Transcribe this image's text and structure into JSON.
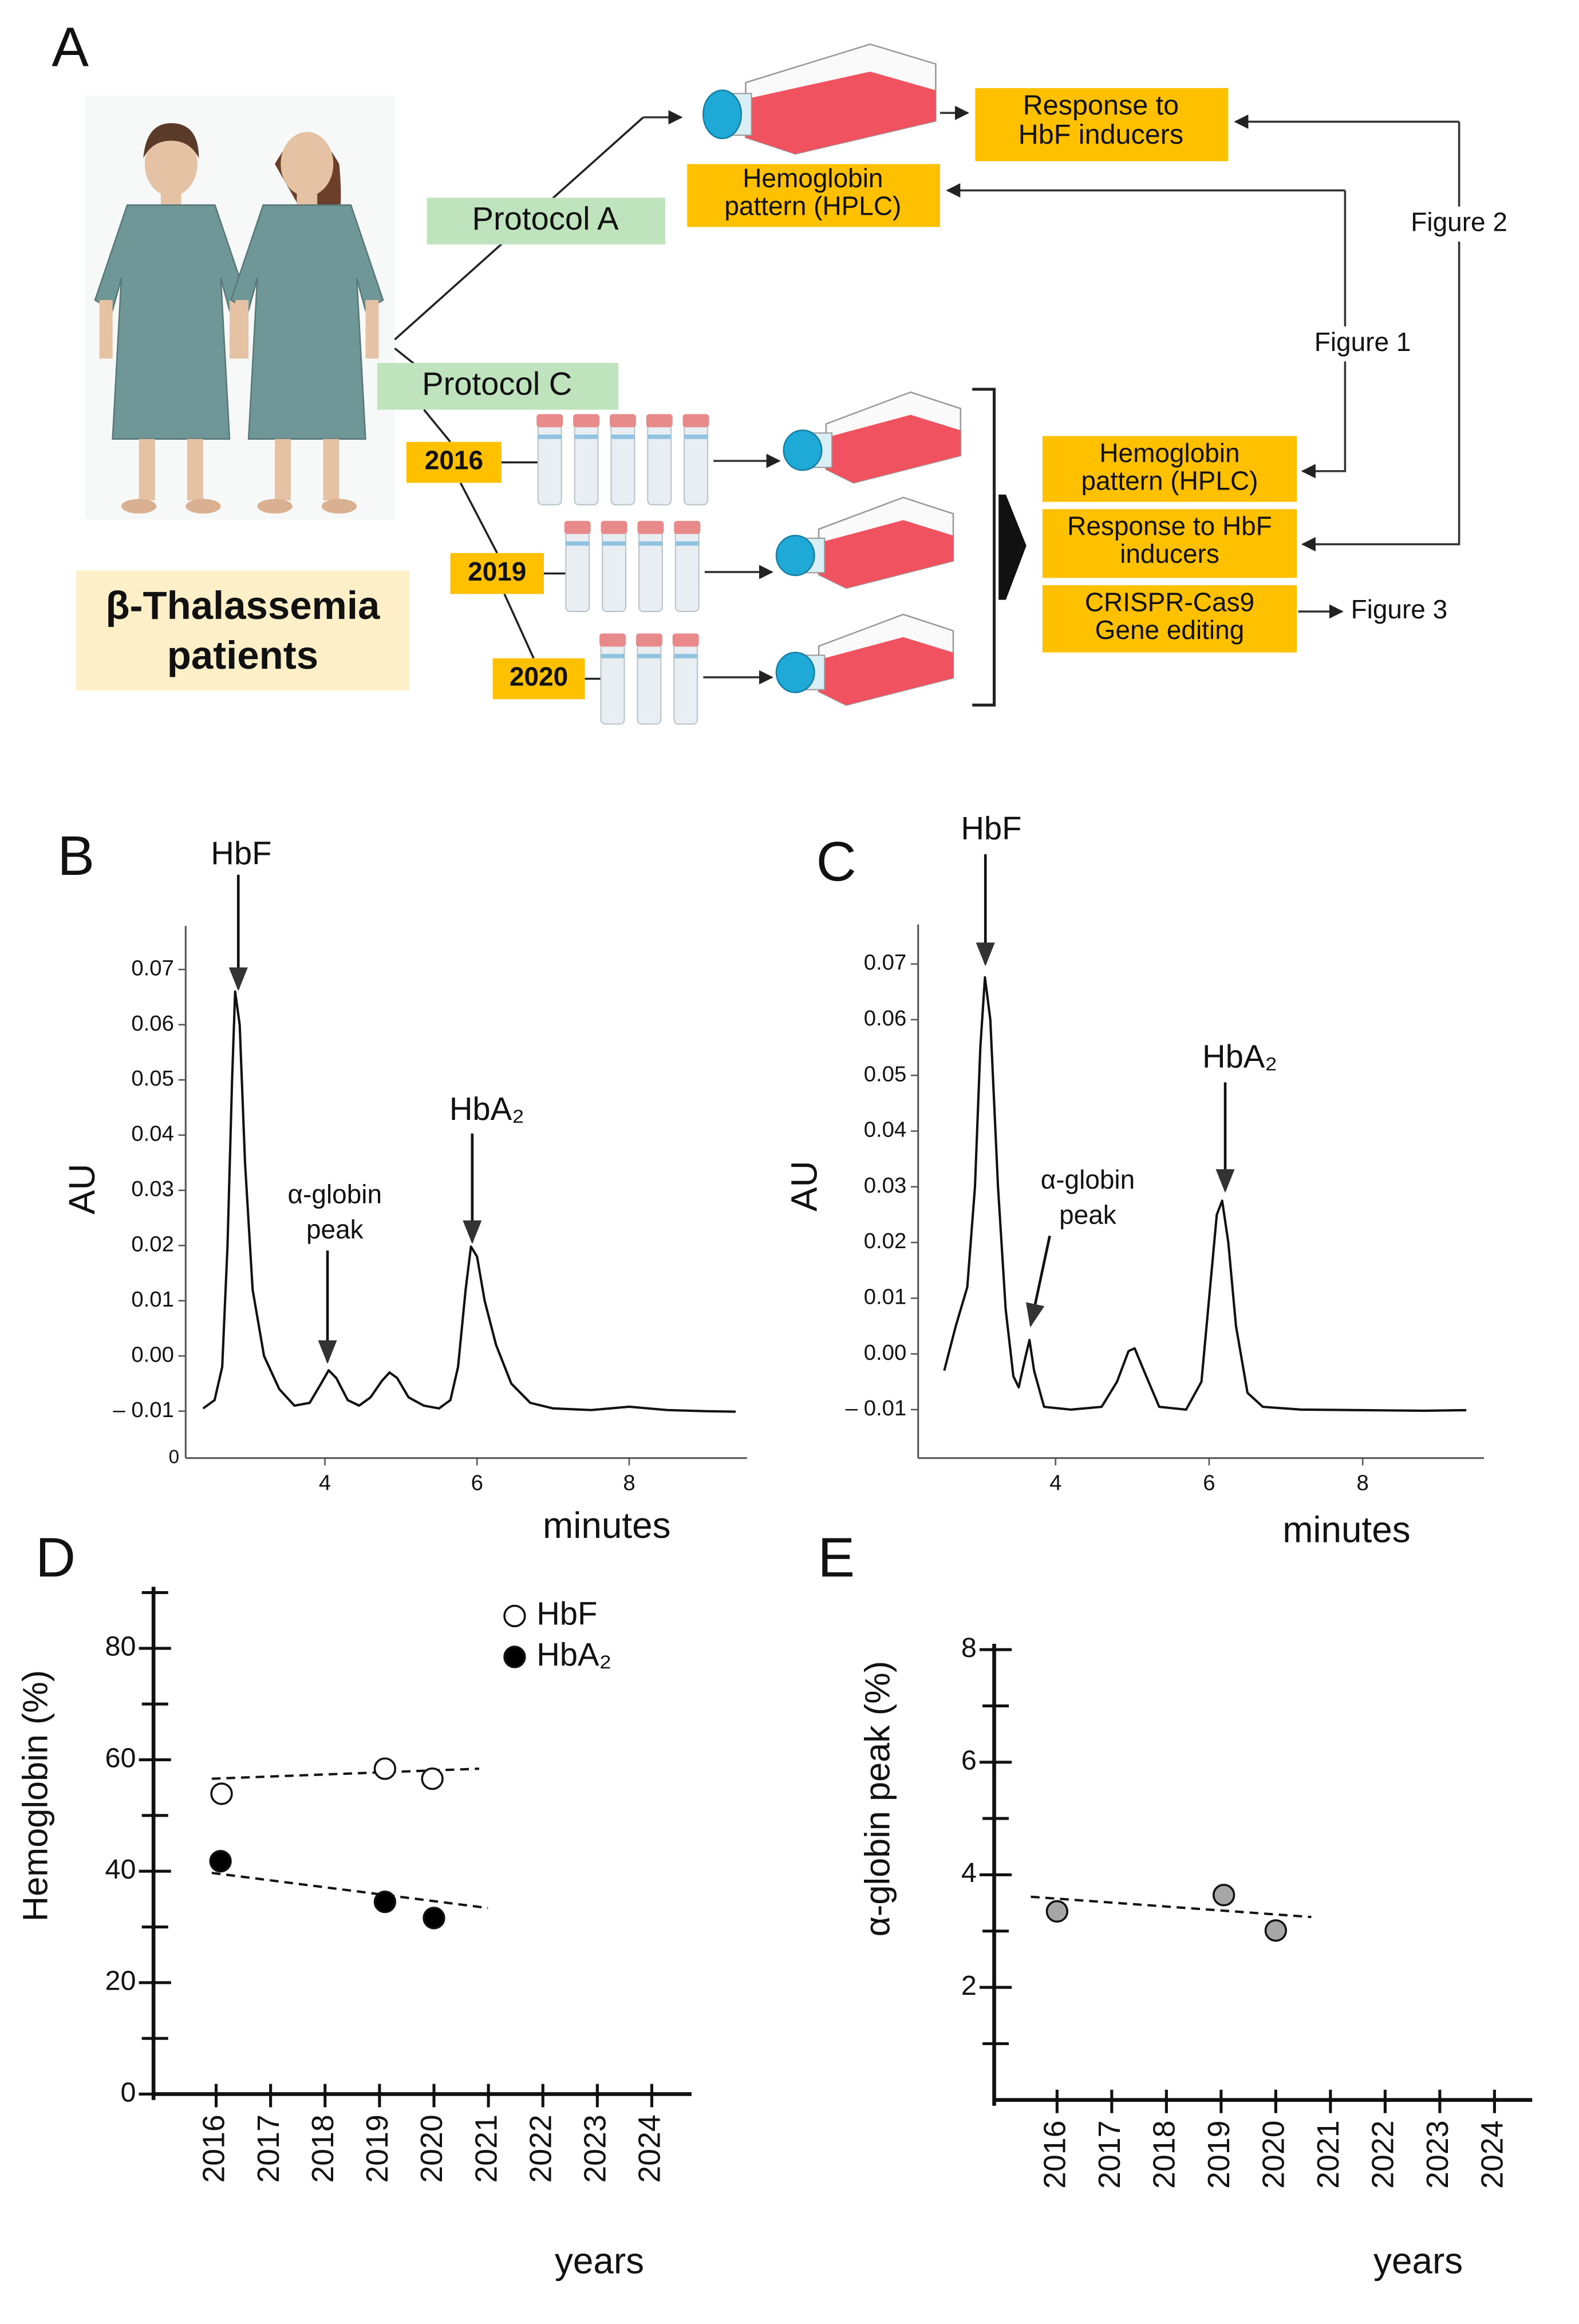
{
  "panel_labels": [
    "A",
    "B",
    "C",
    "D",
    "E"
  ],
  "diagram": {
    "patients_label": [
      "β-Thalassemia",
      "patients"
    ],
    "protocol_a": "Protocol A",
    "protocol_c": "Protocol C",
    "years": [
      "2016",
      "2019",
      "2020"
    ],
    "boxes_a": [
      [
        "Response to",
        "HbF inducers"
      ],
      [
        "Hemoglobin",
        "pattern (HPLC)"
      ]
    ],
    "boxes_c": [
      [
        "Hemoglobin",
        "pattern (HPLC)"
      ],
      [
        "Response to HbF",
        "inducers"
      ],
      [
        "CRISPR-Cas9",
        "Gene editing"
      ]
    ],
    "figure_refs": [
      "Figure 2",
      "Figure 1",
      "Figure 3"
    ]
  },
  "chart_data": [
    {
      "type": "line",
      "xlabel": "minutes",
      "ylabel": "AU",
      "corner_label": "0",
      "annotations": [
        "HbF",
        [
          "α-globin",
          "peak"
        ],
        "HbA₂"
      ],
      "x": [
        2.4,
        2.55,
        2.65,
        2.72,
        2.78,
        2.82,
        2.88,
        2.95,
        3.05,
        3.2,
        3.4,
        3.6,
        3.8,
        3.95,
        4.05,
        4.15,
        4.3,
        4.45,
        4.6,
        4.75,
        4.85,
        4.95,
        5.1,
        5.3,
        5.5,
        5.65,
        5.75,
        5.85,
        5.92,
        6.0,
        6.1,
        6.25,
        6.45,
        6.7,
        7.0,
        7.5,
        8.0,
        8.5,
        9.0,
        9.4
      ],
      "series": [
        {
          "color": "#111111",
          "values": [
            -0.0095,
            -0.008,
            -0.002,
            0.02,
            0.05,
            0.066,
            0.06,
            0.035,
            0.012,
            0.0,
            -0.006,
            -0.009,
            -0.0085,
            -0.005,
            -0.0026,
            -0.004,
            -0.008,
            -0.009,
            -0.0075,
            -0.0045,
            -0.003,
            -0.004,
            -0.0075,
            -0.009,
            -0.0095,
            -0.008,
            -0.002,
            0.012,
            0.0198,
            0.018,
            0.01,
            0.002,
            -0.005,
            -0.0085,
            -0.0095,
            -0.0098,
            -0.0092,
            -0.0098,
            -0.01,
            -0.0101
          ]
        }
      ],
      "xlim": [
        2.17,
        9.55
      ],
      "ylim": [
        -0.0185,
        0.0779
      ],
      "xticks": [
        4,
        6,
        8
      ],
      "yticks": [
        {
          "value": -0.01,
          "label": "– 0.01"
        },
        {
          "value": 0,
          "label": "0.00"
        },
        0.01,
        0.02,
        0.03,
        0.04,
        0.05,
        0.06,
        0.07
      ]
    },
    {
      "type": "line",
      "xlabel": "minutes",
      "ylabel": "AU",
      "annotations": [
        "HbF",
        [
          "α-globin",
          "peak"
        ],
        "HbA₂"
      ],
      "x": [
        2.55,
        2.7,
        2.85,
        2.95,
        3.02,
        3.08,
        3.15,
        3.25,
        3.35,
        3.45,
        3.52,
        3.6,
        3.66,
        3.72,
        3.85,
        4.2,
        4.6,
        4.8,
        4.95,
        5.03,
        5.15,
        5.35,
        5.7,
        5.9,
        6.0,
        6.1,
        6.17,
        6.25,
        6.35,
        6.5,
        6.7,
        7.2,
        8.0,
        8.8,
        9.35
      ],
      "series": [
        {
          "color": "#111111",
          "values": [
            -0.003,
            0.005,
            0.012,
            0.03,
            0.055,
            0.0676,
            0.06,
            0.03,
            0.008,
            -0.004,
            -0.006,
            -0.001,
            0.0025,
            -0.003,
            -0.0095,
            -0.01,
            -0.0095,
            -0.005,
            0.0005,
            0.001,
            -0.003,
            -0.0095,
            -0.01,
            -0.005,
            0.01,
            0.025,
            0.0275,
            0.02,
            0.005,
            -0.007,
            -0.0095,
            -0.01,
            -0.0101,
            -0.0102,
            -0.0101
          ]
        }
      ],
      "xlim": [
        2.21,
        9.58
      ],
      "ylim": [
        -0.0187,
        0.0771
      ],
      "xticks": [
        4,
        6,
        8
      ],
      "yticks": [
        {
          "value": -0.01,
          "label": "– 0.01"
        },
        {
          "value": 0,
          "label": "0.00"
        },
        0.01,
        0.02,
        0.03,
        0.04,
        0.05,
        0.06,
        0.07
      ]
    },
    {
      "type": "scatter",
      "xlabel": "years",
      "ylabel": "Hemoglobin (%)",
      "series": [
        {
          "name": "HbF",
          "color": "#ffffff",
          "x": [
            2016.1,
            2019.1,
            2019.97
          ],
          "values": [
            53.9,
            58.4,
            56.6
          ],
          "trend": {
            "x": [
              2015.92,
              2020.83
            ],
            "values": [
              56.6,
              58.4
            ]
          }
        },
        {
          "name": "HbA₂",
          "color": "#000000",
          "x": [
            2016.08,
            2019.1,
            2020.0
          ],
          "values": [
            41.8,
            34.5,
            31.6
          ],
          "trend": {
            "x": [
              2015.92,
              2020.99
            ],
            "values": [
              39.7,
              33.4
            ]
          }
        }
      ],
      "xlim": [
        2014.85,
        2024.73
      ],
      "ylim": [
        0,
        90
      ],
      "xticks": [
        2016,
        2017,
        2018,
        2019,
        2020,
        2021,
        2022,
        2023,
        2024
      ],
      "yticks": [
        0,
        20,
        40,
        60,
        80
      ],
      "minor_yticks": [
        10,
        30,
        50,
        70,
        90
      ]
    },
    {
      "type": "scatter",
      "xlabel": "years",
      "ylabel": "α-globin peak (%)",
      "series": [
        {
          "color": "#a6a6a6",
          "x": [
            2016.0,
            2019.05,
            2020.0
          ],
          "values": [
            3.35,
            3.64,
            3.01
          ],
          "trend": {
            "x": [
              2015.52,
              2020.65
            ],
            "values": [
              3.61,
              3.25
            ]
          }
        }
      ],
      "xlim": [
        2014.85,
        2024.69
      ],
      "ylim": [
        0,
        8
      ],
      "xticks": [
        2016,
        2017,
        2018,
        2019,
        2020,
        2021,
        2022,
        2023,
        2024
      ],
      "yticks": [
        2,
        4,
        6,
        8
      ],
      "minor_yticks": [
        1,
        3,
        5,
        7
      ]
    }
  ]
}
